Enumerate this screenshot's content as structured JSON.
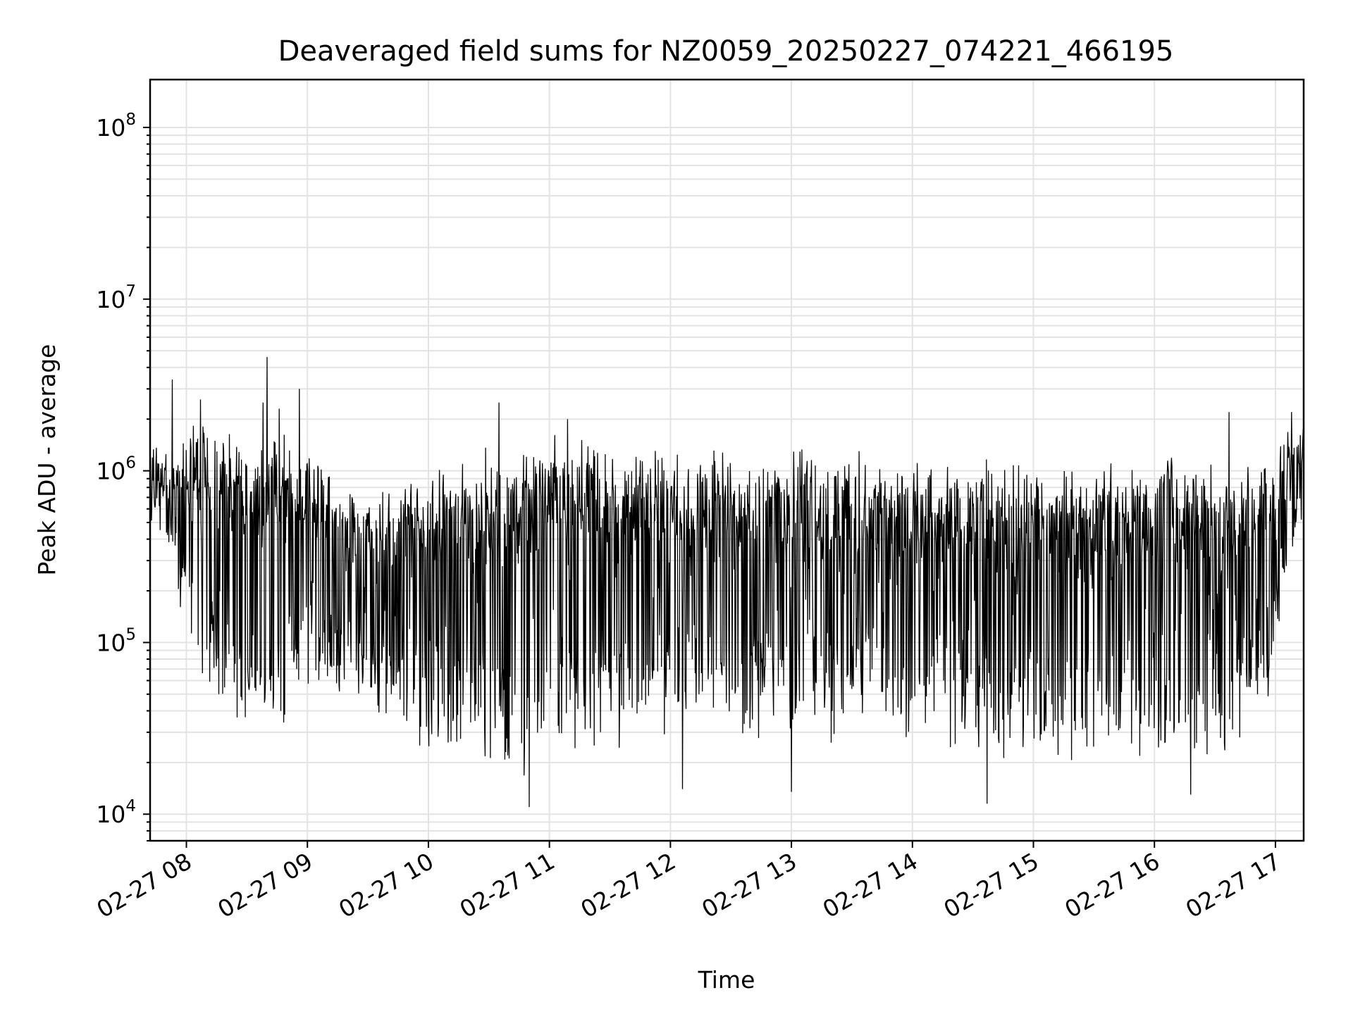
{
  "chart_data": {
    "type": "line",
    "title": "Deaveraged field sums for NZ0059_20250227_074221_466195",
    "xlabel": "Time",
    "ylabel": "Peak ADU - average",
    "yscale": "log",
    "ylim": [
      7000,
      190000000
    ],
    "xlim": [
      "2025-02-27 07:42",
      "2025-02-27 17:14"
    ],
    "grid": true,
    "legend": "none",
    "x_ticks": [
      "02-27 08",
      "02-27 09",
      "02-27 10",
      "02-27 11",
      "02-27 12",
      "02-27 13",
      "02-27 14",
      "02-27 15",
      "02-27 16",
      "02-27 17"
    ],
    "y_ticks": [
      {
        "value": 10000,
        "base": "10",
        "exp": "4"
      },
      {
        "value": 100000,
        "base": "10",
        "exp": "5"
      },
      {
        "value": 1000000,
        "base": "10",
        "exp": "6"
      },
      {
        "value": 10000000,
        "base": "10",
        "exp": "7"
      },
      {
        "value": 100000000,
        "base": "10",
        "exp": "8"
      }
    ],
    "series": [
      {
        "color": "#000000",
        "x": [
          "2025-02-27 07:42",
          "2025-02-27 07:50",
          "2025-02-27 08:00",
          "2025-02-27 08:15",
          "2025-02-27 08:30",
          "2025-02-27 08:45",
          "2025-02-27 09:00",
          "2025-02-27 09:20",
          "2025-02-27 09:40",
          "2025-02-27 10:00",
          "2025-02-27 10:20",
          "2025-02-27 10:40",
          "2025-02-27 11:00",
          "2025-02-27 11:20",
          "2025-02-27 11:40",
          "2025-02-27 12:00",
          "2025-02-27 12:20",
          "2025-02-27 12:40",
          "2025-02-27 13:00",
          "2025-02-27 13:20",
          "2025-02-27 13:40",
          "2025-02-27 14:00",
          "2025-02-27 14:20",
          "2025-02-27 14:40",
          "2025-02-27 15:00",
          "2025-02-27 15:20",
          "2025-02-27 15:40",
          "2025-02-27 16:00",
          "2025-02-27 16:20",
          "2025-02-27 16:40",
          "2025-02-27 16:55",
          "2025-02-27 17:05",
          "2025-02-27 17:14"
        ],
        "floor": [
          800000,
          500000,
          150000,
          60000,
          40000,
          45000,
          60000,
          65000,
          50000,
          35000,
          28000,
          25000,
          30000,
          35000,
          40000,
          40000,
          40000,
          40000,
          40000,
          40000,
          40000,
          35000,
          30000,
          28000,
          27000,
          27000,
          27000,
          27000,
          28000,
          30000,
          60000,
          350000,
          900000
        ],
        "peak": [
          1200000,
          1000000,
          1300000,
          1200000,
          1100000,
          1100000,
          1000000,
          500000,
          500000,
          700000,
          800000,
          1000000,
          1100000,
          1100000,
          1000000,
          900000,
          900000,
          800000,
          950000,
          900000,
          850000,
          800000,
          800000,
          750000,
          750000,
          700000,
          700000,
          800000,
          800000,
          700000,
          900000,
          1100000,
          1300000
        ],
        "spikes": [
          {
            "x": "2025-02-27 07:53",
            "y": 3400000
          },
          {
            "x": "2025-02-27 08:07",
            "y": 2600000
          },
          {
            "x": "2025-02-27 08:38",
            "y": 2500000
          },
          {
            "x": "2025-02-27 08:40",
            "y": 4600000
          },
          {
            "x": "2025-02-27 08:46",
            "y": 2300000
          },
          {
            "x": "2025-02-27 08:56",
            "y": 3000000
          },
          {
            "x": "2025-02-27 10:35",
            "y": 2500000
          },
          {
            "x": "2025-02-27 11:09",
            "y": 2000000
          },
          {
            "x": "2025-02-27 16:37",
            "y": 2200000
          },
          {
            "x": "2025-02-27 17:08",
            "y": 2200000
          },
          {
            "x": "2025-02-27 10:50",
            "y": 11000
          },
          {
            "x": "2025-02-27 12:06",
            "y": 14000
          },
          {
            "x": "2025-02-27 13:00",
            "y": 13500
          },
          {
            "x": "2025-02-27 14:37",
            "y": 11500
          },
          {
            "x": "2025-02-27 16:18",
            "y": 13000
          }
        ]
      }
    ]
  }
}
